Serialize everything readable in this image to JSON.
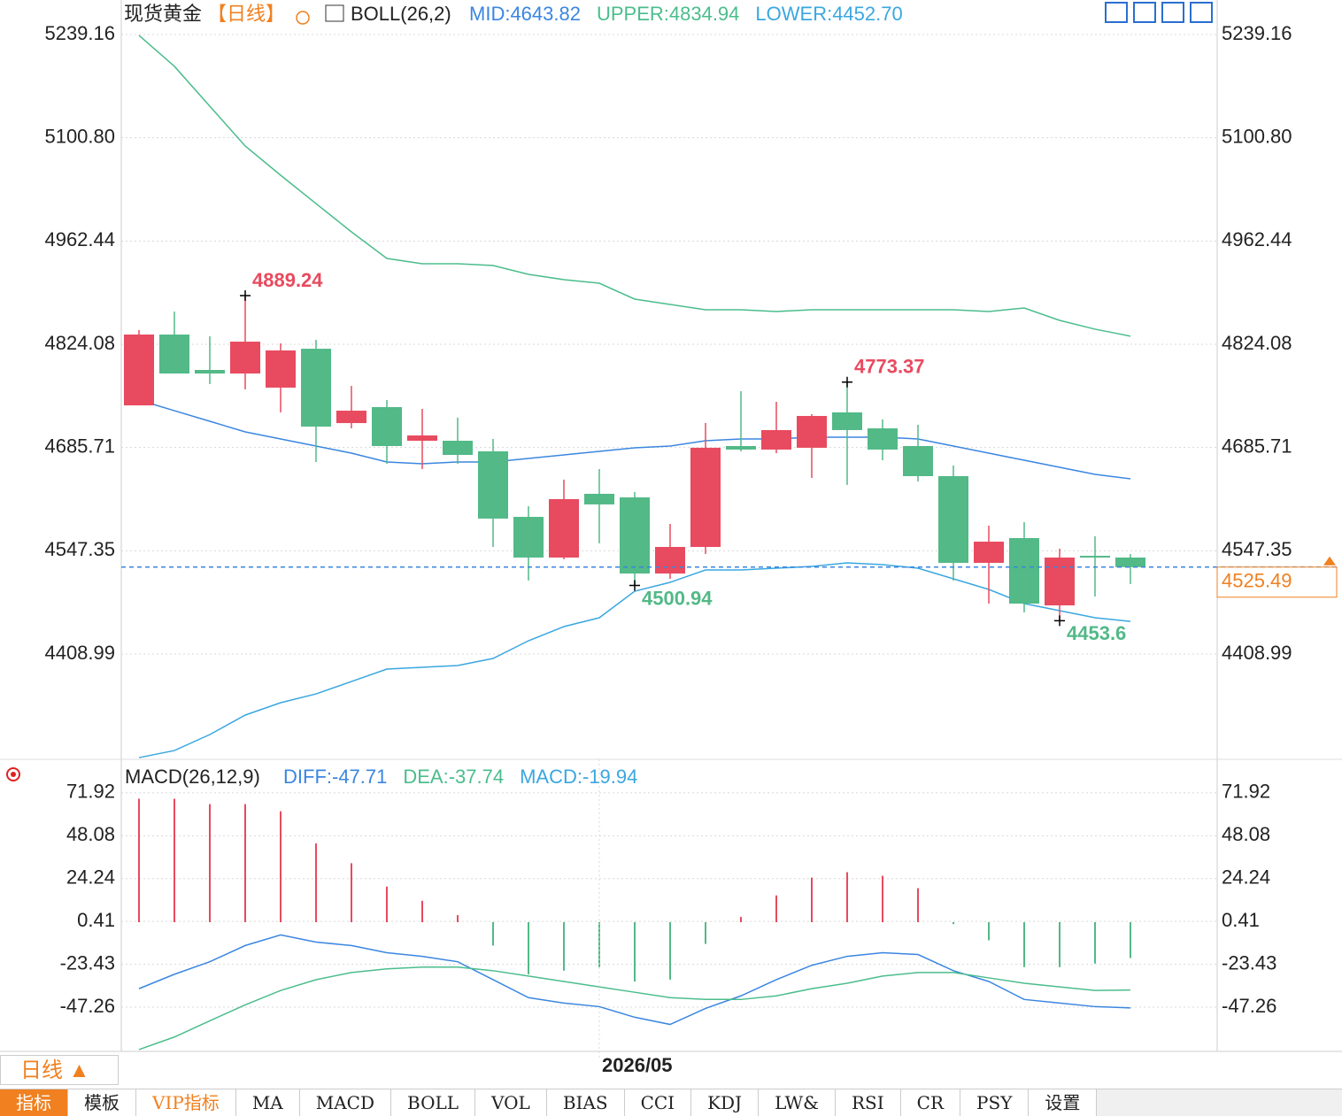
{
  "chart_data": [
    {
      "type": "candlestick",
      "title": "现货黄金",
      "period": "【日线】",
      "indicator": "BOLL(26,2)",
      "categories": [
        null,
        null,
        null,
        null,
        null,
        null,
        null,
        null,
        null,
        null,
        null,
        null,
        null,
        null,
        null,
        null,
        null,
        null,
        null,
        null,
        null,
        null,
        null,
        null,
        null,
        null,
        null,
        null,
        null
      ],
      "open": [
        4742.2,
        4837.1,
        4789.7,
        4784.9,
        4766.0,
        4818.1,
        4718.5,
        4739.9,
        4694.8,
        4694.8,
        4680.6,
        4592.8,
        4538.3,
        4623.7,
        4618.9,
        4516.9,
        4552.5,
        4687.7,
        4683.0,
        4685.4,
        4732.8,
        4711.4,
        4687.7,
        4647.4,
        4531.2,
        4564.4,
        4474.2,
        4540.6,
        4538.3
      ],
      "high": [
        4843.1,
        4867.9,
        4834.7,
        4889.24,
        4825.2,
        4830.0,
        4768.3,
        4749.4,
        4737.5,
        4725.7,
        4697.2,
        4607.1,
        4642.7,
        4656.9,
        4626.0,
        4583.4,
        4718.5,
        4761.2,
        4747.0,
        4730.4,
        4773.37,
        4723.3,
        4716.2,
        4661.6,
        4581.0,
        4585.7,
        4550.2,
        4566.8,
        4543.0
      ],
      "low": [
        4742.2,
        4784.9,
        4770.7,
        4763.6,
        4732.8,
        4666.3,
        4711.4,
        4663.9,
        4656.9,
        4663.9,
        4552.5,
        4507.5,
        4536.0,
        4557.3,
        4500.94,
        4509.8,
        4543.0,
        4680.6,
        4678.2,
        4645.0,
        4635.6,
        4668.7,
        4640.3,
        4507.5,
        4476.6,
        4464.8,
        4453.6,
        4486.1,
        4502.7
      ],
      "close": [
        4837.1,
        4784.9,
        4784.9,
        4827.6,
        4815.8,
        4713.8,
        4735.1,
        4687.7,
        4701.9,
        4675.8,
        4590.5,
        4538.3,
        4616.6,
        4609.5,
        4516.9,
        4552.5,
        4685.4,
        4683.0,
        4709.1,
        4728.0,
        4709.1,
        4683.0,
        4647.4,
        4531.2,
        4559.6,
        4476.6,
        4538.3,
        4538.3,
        4525.49
      ],
      "up_color": "#e84a5f",
      "down_color": "#52b987",
      "ylim": [
        4267.9,
        5285.4
      ],
      "yticks": [
        5239.16,
        {
          "value": 5100.8,
          "label": "5100.80"
        },
        4962.44,
        4824.08,
        4685.71,
        4547.35,
        4408.99
      ],
      "grid": true,
      "series": [
        {
          "name": "MID:4643.82",
          "color": "#3b86e0",
          "values": [
            4749.4,
            4735.1,
            4720.9,
            4706.7,
            4697.2,
            4687.7,
            4678.2,
            4666.4,
            4664.0,
            4666.4,
            4666.4,
            4671.1,
            4675.8,
            4680.6,
            4685.3,
            4687.7,
            4694.8,
            4697.2,
            4697.2,
            4699.6,
            4699.6,
            4699.6,
            4697.2,
            4687.7,
            4678.2,
            4668.7,
            4659.2,
            4649.8,
            4643.82
          ]
        },
        {
          "name": "UPPER:4834.94",
          "color": "#4bbd8c",
          "values": [
            5238.0,
            5196.5,
            5143.1,
            5089.8,
            5050.6,
            5012.6,
            4974.7,
            4939.1,
            4932.0,
            4932.0,
            4929.6,
            4917.8,
            4910.7,
            4905.9,
            4884.6,
            4877.5,
            4870.4,
            4870.4,
            4868.0,
            4870.4,
            4870.4,
            4870.4,
            4870.4,
            4870.4,
            4868.0,
            4872.7,
            4856.1,
            4844.3,
            4834.94
          ]
        },
        {
          "name": "LOWER:4452.70",
          "color": "#3aa7e0",
          "values": [
            4270.2,
            4279.7,
            4301.1,
            4327.2,
            4343.8,
            4355.6,
            4372.2,
            4388.8,
            4391.2,
            4393.6,
            4403.1,
            4426.8,
            4445.8,
            4457.6,
            4493.2,
            4505.1,
            4521.7,
            4521.7,
            4524.0,
            4526.4,
            4531.2,
            4528.8,
            4524.0,
            4509.8,
            4495.6,
            4476.6,
            4467.1,
            4457.6,
            4452.7
          ]
        }
      ],
      "annotations": [
        {
          "index": 3,
          "value": 4889.24,
          "color": "#e84a5f"
        },
        {
          "index": 20,
          "value": 4773.37,
          "color": "#e84a5f"
        },
        {
          "index": 14,
          "value": 4500.94,
          "color": "#52b987"
        },
        {
          "index": 26,
          "value": 4453.6,
          "color": "#52b987"
        }
      ],
      "last_price": 4525.49,
      "last_price_color": "#f08020"
    },
    {
      "type": "macd",
      "title": "MACD(26,12,9)",
      "categories": [
        null,
        null,
        null,
        null,
        null,
        null,
        null,
        null,
        null,
        null,
        null,
        null,
        null,
        "2026/05",
        null,
        null,
        null,
        null,
        null,
        null,
        null,
        null,
        null,
        null,
        null,
        null,
        null,
        null,
        null
      ],
      "ylim": [
        -71.9,
        90.6
      ],
      "yticks": [
        71.92,
        48.08,
        24.24,
        0.41,
        -23.43,
        -47.26
      ],
      "grid": true,
      "histogram": {
        "name": "MACD:-19.94",
        "color": "#3aa7e0",
        "up_color": "#e84a5f",
        "down_color": "#52b987",
        "values": [
          68.7,
          68.7,
          65.7,
          65.7,
          61.7,
          43.8,
          32.8,
          19.8,
          11.9,
          3.9,
          -13.0,
          -29.0,
          -27.0,
          -25.0,
          -33.0,
          -32.0,
          -12.1,
          2.9,
          14.9,
          24.8,
          27.8,
          25.8,
          18.9,
          -1.1,
          -10.1,
          -25.0,
          -25.0,
          -23.0,
          -19.94
        ]
      },
      "series": [
        {
          "name": "DIFF:-47.71",
          "color": "#3b86e0",
          "values": [
            -37.0,
            -29.0,
            -22.0,
            -13.0,
            -7.1,
            -11.1,
            -13.0,
            -17.0,
            -19.0,
            -22.0,
            -32.0,
            -42.0,
            -45.0,
            -47.0,
            -52.9,
            -56.9,
            -48.0,
            -41.0,
            -32.0,
            -24.0,
            -19.0,
            -17.0,
            -18.0,
            -27.0,
            -33.0,
            -43.0,
            -45.0,
            -47.0,
            -47.71
          ]
        },
        {
          "name": "DEA:-37.74",
          "color": "#4bbd8c",
          "values": [
            -70.9,
            -63.9,
            -54.9,
            -46.0,
            -38.0,
            -32.0,
            -28.0,
            -26.0,
            -25.0,
            -25.0,
            -27.0,
            -30.0,
            -33.0,
            -36.0,
            -39.0,
            -42.0,
            -43.0,
            -43.0,
            -41.0,
            -37.0,
            -34.0,
            -30.0,
            -28.0,
            -28.0,
            -31.0,
            -34.0,
            -36.0,
            -38.0,
            -37.74
          ]
        }
      ]
    }
  ],
  "toolbar": {
    "period": "日线 ▲",
    "tabs": [
      "指标",
      "模板",
      "VIP指标",
      "MA",
      "MACD",
      "BOLL",
      "VOL",
      "BIAS",
      "CCI",
      "KDJ",
      "LW&",
      "RSI",
      "CR",
      "PSY",
      "设置"
    ]
  }
}
